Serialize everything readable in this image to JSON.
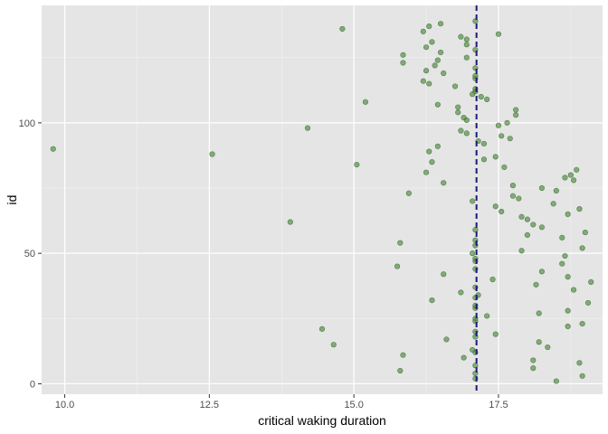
{
  "chart_data": {
    "type": "scatter",
    "xlabel": "critical waking duration",
    "ylabel": "id",
    "xlim": [
      9.6,
      19.3
    ],
    "ylim": [
      -4,
      145
    ],
    "x_ticks": [
      10.0,
      12.5,
      15.0,
      17.5
    ],
    "x_tick_labels": [
      "10.0",
      "12.5",
      "15.0",
      "17.5"
    ],
    "y_ticks": [
      0,
      50,
      100
    ],
    "y_tick_labels": [
      "0",
      "50",
      "100"
    ],
    "grid": true,
    "background": "#e5e5e5",
    "point_color": "#4a8a3a",
    "vline": {
      "x": 17.12,
      "color": "#1a1a7a",
      "style": "dashed"
    },
    "points": [
      {
        "x": 18.5,
        "y": 1
      },
      {
        "x": 17.1,
        "y": 2
      },
      {
        "x": 18.95,
        "y": 3
      },
      {
        "x": 17.1,
        "y": 4
      },
      {
        "x": 15.8,
        "y": 5
      },
      {
        "x": 18.1,
        "y": 6
      },
      {
        "x": 17.1,
        "y": 7
      },
      {
        "x": 18.9,
        "y": 8
      },
      {
        "x": 18.1,
        "y": 9
      },
      {
        "x": 16.9,
        "y": 10
      },
      {
        "x": 15.85,
        "y": 11
      },
      {
        "x": 17.1,
        "y": 12
      },
      {
        "x": 17.05,
        "y": 13
      },
      {
        "x": 18.35,
        "y": 14
      },
      {
        "x": 14.65,
        "y": 15
      },
      {
        "x": 18.2,
        "y": 16
      },
      {
        "x": 16.6,
        "y": 17
      },
      {
        "x": 17.1,
        "y": 18
      },
      {
        "x": 17.45,
        "y": 19
      },
      {
        "x": 17.1,
        "y": 20
      },
      {
        "x": 14.45,
        "y": 21
      },
      {
        "x": 18.7,
        "y": 22
      },
      {
        "x": 18.95,
        "y": 23
      },
      {
        "x": 17.1,
        "y": 24
      },
      {
        "x": 17.1,
        "y": 25
      },
      {
        "x": 17.3,
        "y": 26
      },
      {
        "x": 18.2,
        "y": 27
      },
      {
        "x": 18.7,
        "y": 28
      },
      {
        "x": 17.1,
        "y": 29
      },
      {
        "x": 17.1,
        "y": 30
      },
      {
        "x": 19.05,
        "y": 31
      },
      {
        "x": 16.35,
        "y": 32
      },
      {
        "x": 17.1,
        "y": 33
      },
      {
        "x": 17.15,
        "y": 34
      },
      {
        "x": 16.85,
        "y": 35
      },
      {
        "x": 18.8,
        "y": 36
      },
      {
        "x": 17.1,
        "y": 37
      },
      {
        "x": 18.15,
        "y": 38
      },
      {
        "x": 19.1,
        "y": 39
      },
      {
        "x": 17.4,
        "y": 40
      },
      {
        "x": 18.7,
        "y": 41
      },
      {
        "x": 16.55,
        "y": 42
      },
      {
        "x": 18.25,
        "y": 43
      },
      {
        "x": 17.1,
        "y": 44
      },
      {
        "x": 15.75,
        "y": 45
      },
      {
        "x": 18.6,
        "y": 46
      },
      {
        "x": 17.1,
        "y": 47
      },
      {
        "x": 17.1,
        "y": 48
      },
      {
        "x": 18.65,
        "y": 49
      },
      {
        "x": 17.05,
        "y": 50
      },
      {
        "x": 17.9,
        "y": 51
      },
      {
        "x": 18.95,
        "y": 52
      },
      {
        "x": 17.1,
        "y": 53
      },
      {
        "x": 15.8,
        "y": 54
      },
      {
        "x": 17.1,
        "y": 55
      },
      {
        "x": 18.6,
        "y": 56
      },
      {
        "x": 18.0,
        "y": 57
      },
      {
        "x": 19.0,
        "y": 58
      },
      {
        "x": 17.1,
        "y": 59
      },
      {
        "x": 18.25,
        "y": 60
      },
      {
        "x": 18.1,
        "y": 61
      },
      {
        "x": 13.9,
        "y": 62
      },
      {
        "x": 18.0,
        "y": 63
      },
      {
        "x": 17.9,
        "y": 64
      },
      {
        "x": 18.7,
        "y": 65
      },
      {
        "x": 17.55,
        "y": 66
      },
      {
        "x": 18.9,
        "y": 67
      },
      {
        "x": 17.45,
        "y": 68
      },
      {
        "x": 18.45,
        "y": 69
      },
      {
        "x": 17.05,
        "y": 70
      },
      {
        "x": 17.85,
        "y": 71
      },
      {
        "x": 17.75,
        "y": 72
      },
      {
        "x": 15.95,
        "y": 73
      },
      {
        "x": 18.5,
        "y": 74
      },
      {
        "x": 18.25,
        "y": 75
      },
      {
        "x": 17.75,
        "y": 76
      },
      {
        "x": 16.55,
        "y": 77
      },
      {
        "x": 18.8,
        "y": 78
      },
      {
        "x": 18.65,
        "y": 79
      },
      {
        "x": 18.75,
        "y": 80
      },
      {
        "x": 16.25,
        "y": 81
      },
      {
        "x": 18.85,
        "y": 82
      },
      {
        "x": 17.6,
        "y": 83
      },
      {
        "x": 15.05,
        "y": 84
      },
      {
        "x": 16.35,
        "y": 85
      },
      {
        "x": 17.25,
        "y": 86
      },
      {
        "x": 17.45,
        "y": 87
      },
      {
        "x": 12.55,
        "y": 88
      },
      {
        "x": 16.3,
        "y": 89
      },
      {
        "x": 9.8,
        "y": 90
      },
      {
        "x": 16.45,
        "y": 91
      },
      {
        "x": 17.25,
        "y": 92
      },
      {
        "x": 17.15,
        "y": 93
      },
      {
        "x": 17.7,
        "y": 94
      },
      {
        "x": 17.55,
        "y": 95
      },
      {
        "x": 16.95,
        "y": 96
      },
      {
        "x": 16.85,
        "y": 97
      },
      {
        "x": 14.2,
        "y": 98
      },
      {
        "x": 17.5,
        "y": 99
      },
      {
        "x": 17.65,
        "y": 100
      },
      {
        "x": 16.95,
        "y": 101
      },
      {
        "x": 16.9,
        "y": 102
      },
      {
        "x": 17.8,
        "y": 103
      },
      {
        "x": 16.8,
        "y": 104
      },
      {
        "x": 17.8,
        "y": 105
      },
      {
        "x": 16.8,
        "y": 106
      },
      {
        "x": 16.45,
        "y": 107
      },
      {
        "x": 15.2,
        "y": 108
      },
      {
        "x": 17.3,
        "y": 109
      },
      {
        "x": 17.2,
        "y": 110
      },
      {
        "x": 17.05,
        "y": 111
      },
      {
        "x": 17.1,
        "y": 112
      },
      {
        "x": 17.1,
        "y": 113
      },
      {
        "x": 16.75,
        "y": 114
      },
      {
        "x": 16.3,
        "y": 115
      },
      {
        "x": 16.2,
        "y": 116
      },
      {
        "x": 17.1,
        "y": 117
      },
      {
        "x": 17.1,
        "y": 118
      },
      {
        "x": 16.55,
        "y": 119
      },
      {
        "x": 16.25,
        "y": 120
      },
      {
        "x": 17.1,
        "y": 121
      },
      {
        "x": 16.4,
        "y": 122
      },
      {
        "x": 15.85,
        "y": 123
      },
      {
        "x": 16.45,
        "y": 124
      },
      {
        "x": 16.95,
        "y": 125
      },
      {
        "x": 15.85,
        "y": 126
      },
      {
        "x": 16.5,
        "y": 127
      },
      {
        "x": 17.1,
        "y": 128
      },
      {
        "x": 16.25,
        "y": 129
      },
      {
        "x": 16.95,
        "y": 130
      },
      {
        "x": 16.35,
        "y": 131
      },
      {
        "x": 16.95,
        "y": 132
      },
      {
        "x": 16.85,
        "y": 133
      },
      {
        "x": 17.5,
        "y": 134
      },
      {
        "x": 16.2,
        "y": 135
      },
      {
        "x": 14.8,
        "y": 136
      },
      {
        "x": 16.3,
        "y": 137
      },
      {
        "x": 16.5,
        "y": 138
      },
      {
        "x": 17.1,
        "y": 139
      }
    ]
  }
}
